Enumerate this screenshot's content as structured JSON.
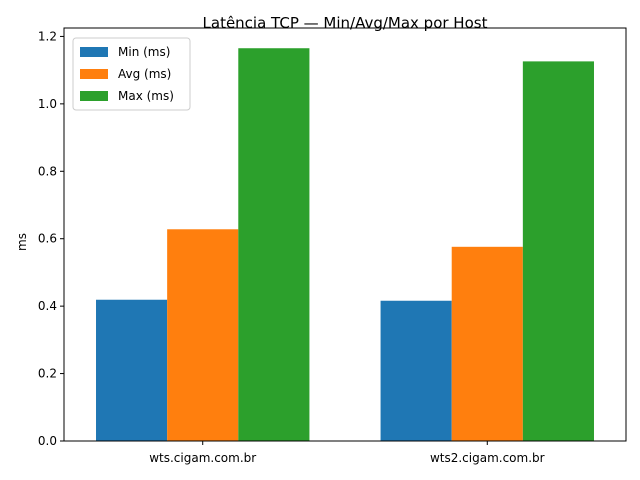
{
  "chart_data": {
    "type": "bar",
    "title": "Latência TCP — Min/Avg/Max por Host",
    "xlabel": "",
    "ylabel": "ms",
    "categories": [
      "wts.cigam.com.br",
      "wts2.cigam.com.br"
    ],
    "series": [
      {
        "name": "Min (ms)",
        "values": [
          0.419,
          0.416
        ],
        "color": "#1f77b4"
      },
      {
        "name": "Avg (ms)",
        "values": [
          0.628,
          0.576
        ],
        "color": "#ff7f0e"
      },
      {
        "name": "Max (ms)",
        "values": [
          1.165,
          1.126
        ],
        "color": "#2ca02c"
      }
    ],
    "ylim": [
      0,
      1.225
    ],
    "yticks": [
      "0.0",
      "0.2",
      "0.4",
      "0.6",
      "0.8",
      "1.0",
      "1.2"
    ],
    "grid": false,
    "legend": "top-left"
  }
}
